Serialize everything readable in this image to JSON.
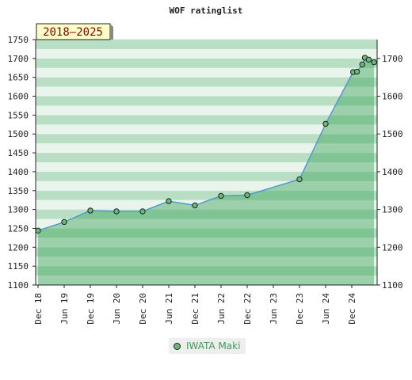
{
  "chart_data": {
    "type": "area",
    "title": "WOF ratinglist",
    "badge": "2018–2025",
    "xlabel": "",
    "ylabel": "",
    "ylim": [
      1100,
      1750
    ],
    "yticks_left": [
      1100,
      1150,
      1200,
      1250,
      1300,
      1350,
      1400,
      1450,
      1500,
      1550,
      1600,
      1650,
      1700,
      1750
    ],
    "yticks_right": [
      1100,
      1200,
      1300,
      1400,
      1500,
      1600,
      1700
    ],
    "xticks": [
      "Dec 18",
      "Jun 19",
      "Dec 19",
      "Jun 20",
      "Dec 20",
      "Jun 21",
      "Dec 21",
      "Jun 22",
      "Dec 22",
      "Jun 23",
      "Dec 23",
      "Jun 24",
      "Dec 24"
    ],
    "xlim": [
      0,
      13
    ],
    "series": [
      {
        "name": "IWATA Maki",
        "x": [
          0,
          1,
          2,
          3,
          4,
          5,
          6,
          7,
          8,
          10,
          11,
          12.05,
          12.2,
          12.4,
          12.5,
          12.65,
          12.85
        ],
        "values": [
          1244,
          1267,
          1297,
          1295,
          1295,
          1322,
          1311,
          1336,
          1338,
          1380,
          1527,
          1664,
          1665,
          1684,
          1702,
          1697,
          1690
        ]
      }
    ],
    "colors": {
      "line": "#4f9bd0",
      "marker": "#66bb77",
      "band_light": "#e9f5ec",
      "band_dark": "#b8dfc3",
      "fill": "#3fa45a",
      "legend_text": "#3e9a5a",
      "badge_bg": "#ffffc8",
      "badge_text": "#880000"
    },
    "grid": true,
    "legend_position": "bottom-center"
  }
}
